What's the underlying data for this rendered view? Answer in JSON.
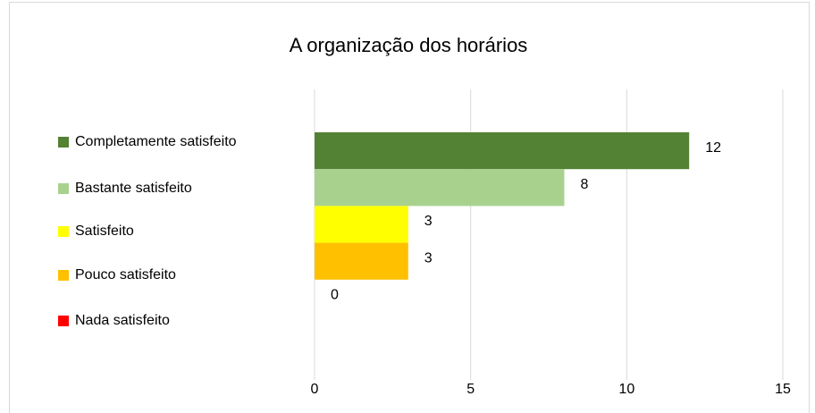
{
  "chart_data": {
    "type": "bar",
    "orientation": "horizontal",
    "title": "A organização dos horários",
    "categories": [
      null
    ],
    "series": [
      {
        "name": "Completamente satisfeito",
        "color": "#548235",
        "values": [
          12
        ]
      },
      {
        "name": "Bastante satisfeito",
        "color": "#a9d18e",
        "values": [
          8
        ]
      },
      {
        "name": "Satisfeito",
        "color": "#ffff00",
        "values": [
          3
        ]
      },
      {
        "name": "Pouco satisfeito",
        "color": "#ffc000",
        "values": [
          3
        ]
      },
      {
        "name": "Nada satisfeito",
        "color": "#ff0000",
        "values": [
          0
        ]
      }
    ],
    "xlim": [
      0,
      15
    ],
    "xticks": [
      0,
      5,
      10,
      15
    ],
    "grid": true,
    "legend": "left"
  }
}
